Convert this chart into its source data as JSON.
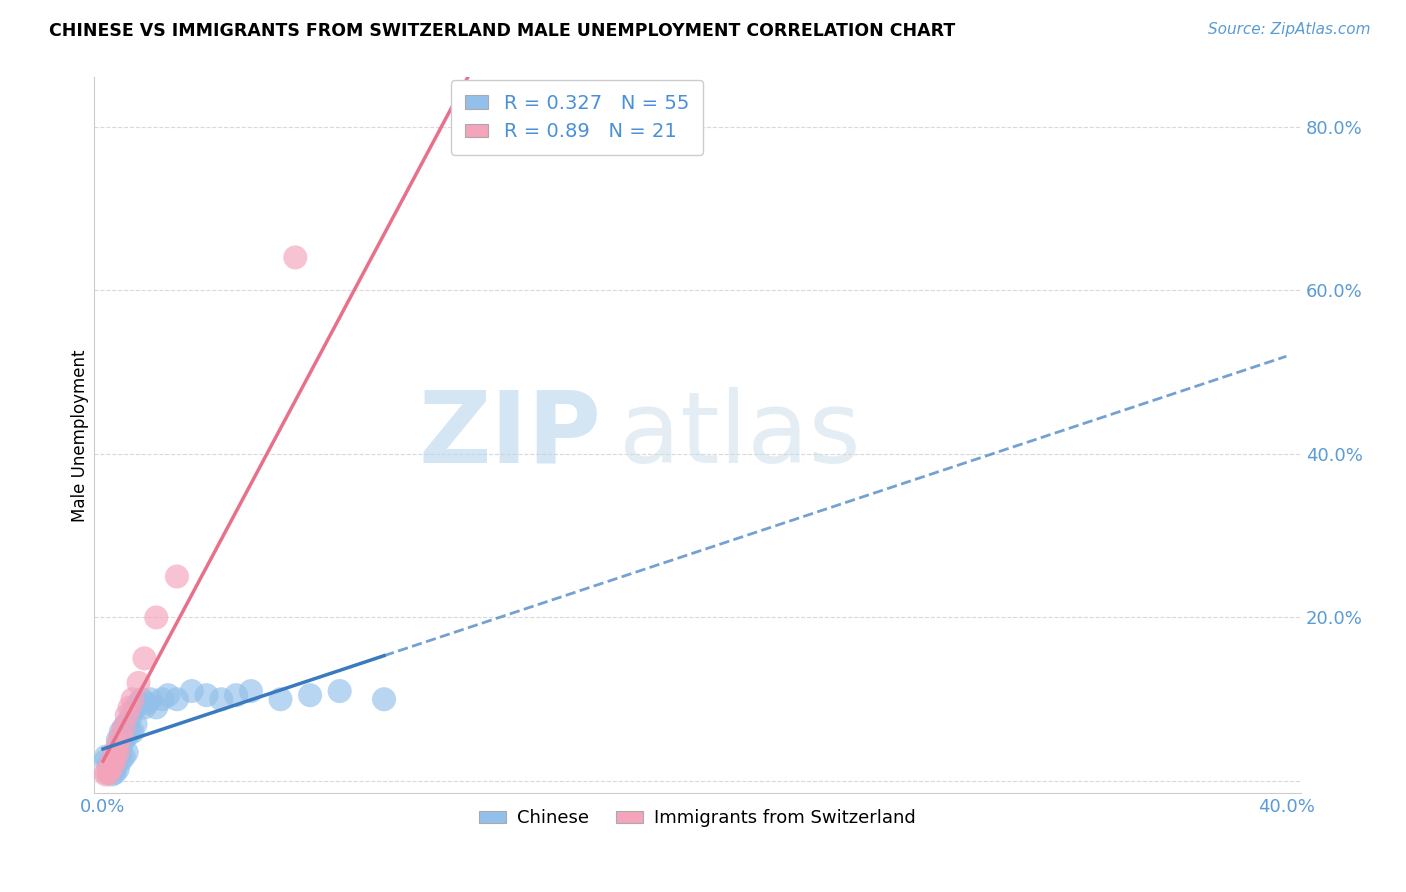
{
  "title": "CHINESE VS IMMIGRANTS FROM SWITZERLAND MALE UNEMPLOYMENT CORRELATION CHART",
  "source": "Source: ZipAtlas.com",
  "ylabel": "Male Unemployment",
  "xlim": [
    -0.003,
    0.405
  ],
  "ylim": [
    -0.015,
    0.86
  ],
  "chinese_R": 0.327,
  "chinese_N": 55,
  "swiss_R": 0.89,
  "swiss_N": 21,
  "chinese_color": "#92c0ea",
  "swiss_color": "#f4a4bb",
  "chinese_line_color": "#3a7abf",
  "swiss_line_color": "#e8708a",
  "background_color": "#ffffff",
  "watermark_zip": "ZIP",
  "watermark_atlas": "atlas",
  "chinese_x": [
    0.001,
    0.001,
    0.002,
    0.002,
    0.002,
    0.002,
    0.003,
    0.003,
    0.003,
    0.003,
    0.003,
    0.004,
    0.004,
    0.004,
    0.004,
    0.004,
    0.005,
    0.005,
    0.005,
    0.005,
    0.005,
    0.006,
    0.006,
    0.006,
    0.006,
    0.007,
    0.007,
    0.007,
    0.008,
    0.008,
    0.008,
    0.009,
    0.009,
    0.01,
    0.01,
    0.011,
    0.011,
    0.012,
    0.013,
    0.014,
    0.015,
    0.016,
    0.018,
    0.02,
    0.022,
    0.025,
    0.03,
    0.035,
    0.04,
    0.045,
    0.05,
    0.06,
    0.07,
    0.08,
    0.095
  ],
  "chinese_y": [
    0.03,
    0.025,
    0.02,
    0.018,
    0.015,
    0.01,
    0.025,
    0.02,
    0.015,
    0.012,
    0.008,
    0.03,
    0.025,
    0.018,
    0.015,
    0.01,
    0.05,
    0.04,
    0.03,
    0.025,
    0.015,
    0.06,
    0.05,
    0.035,
    0.025,
    0.065,
    0.05,
    0.03,
    0.07,
    0.055,
    0.035,
    0.075,
    0.06,
    0.085,
    0.06,
    0.09,
    0.07,
    0.095,
    0.1,
    0.09,
    0.095,
    0.1,
    0.09,
    0.1,
    0.105,
    0.1,
    0.11,
    0.105,
    0.1,
    0.105,
    0.11,
    0.1,
    0.105,
    0.11,
    0.1
  ],
  "swiss_x": [
    0.001,
    0.001,
    0.002,
    0.002,
    0.003,
    0.003,
    0.004,
    0.004,
    0.005,
    0.005,
    0.006,
    0.007,
    0.008,
    0.009,
    0.01,
    0.012,
    0.014,
    0.018,
    0.025,
    0.065,
    0.13
  ],
  "swiss_y": [
    0.01,
    0.008,
    0.015,
    0.01,
    0.025,
    0.018,
    0.035,
    0.025,
    0.045,
    0.035,
    0.055,
    0.065,
    0.08,
    0.09,
    0.1,
    0.12,
    0.15,
    0.2,
    0.25,
    0.64,
    0.8
  ],
  "x_tick_positions": [
    0.0,
    0.05,
    0.1,
    0.15,
    0.2,
    0.25,
    0.3,
    0.35,
    0.4
  ],
  "x_tick_labels": [
    "0.0%",
    "",
    "",
    "",
    "",
    "",
    "",
    "",
    "40.0%"
  ],
  "y_tick_positions": [
    0.0,
    0.2,
    0.4,
    0.6,
    0.8
  ],
  "y_tick_labels": [
    "",
    "20.0%",
    "40.0%",
    "60.0%",
    "80.0%"
  ],
  "tick_color": "#5b9bd5",
  "grid_color": "#d0d0d0",
  "title_fontsize": 12.5,
  "source_fontsize": 11,
  "tick_fontsize": 13,
  "ylabel_fontsize": 12
}
